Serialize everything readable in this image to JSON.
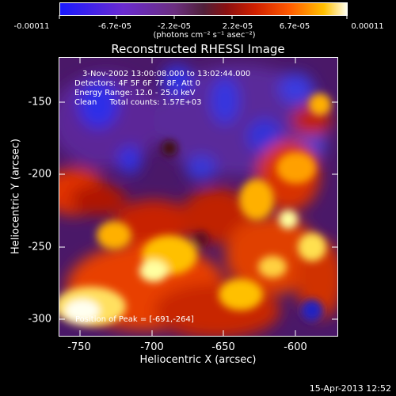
{
  "colorbar": {
    "tick_labels": [
      "-0.00011",
      "-6.7e-05",
      "-2.2e-05",
      "2.2e-05",
      "6.7e-05",
      "0.00011"
    ],
    "unit_label": "(photons cm⁻² s⁻¹ asec⁻²)",
    "range": [
      -0.00011,
      0.00011
    ]
  },
  "title": "Reconstructed RHESSI Image",
  "axes": {
    "xlabel": "Heliocentric X (arcsec)",
    "ylabel": "Heliocentric Y (arcsec)",
    "xticks": [
      "-750",
      "-700",
      "-650",
      "-600"
    ],
    "yticks": [
      "-150",
      "-200",
      "-250",
      "-300"
    ],
    "xlim": [
      -765,
      -570
    ],
    "ylim": [
      -310,
      -125
    ]
  },
  "annotation": {
    "time_range": "3-Nov-2002 13:00:08.000 to 13:02:44.000",
    "detectors": "Detectors: 4F 5F 6F 7F 8F, Att 0",
    "energy": "Energy Range: 12.0 - 25.0 keV",
    "clean": "Clean     Total counts: 1.57E+03",
    "peak": "Position of Peak = [-691,-264]"
  },
  "footer": {
    "timestamp": "15-Apr-2013 12:52"
  }
}
